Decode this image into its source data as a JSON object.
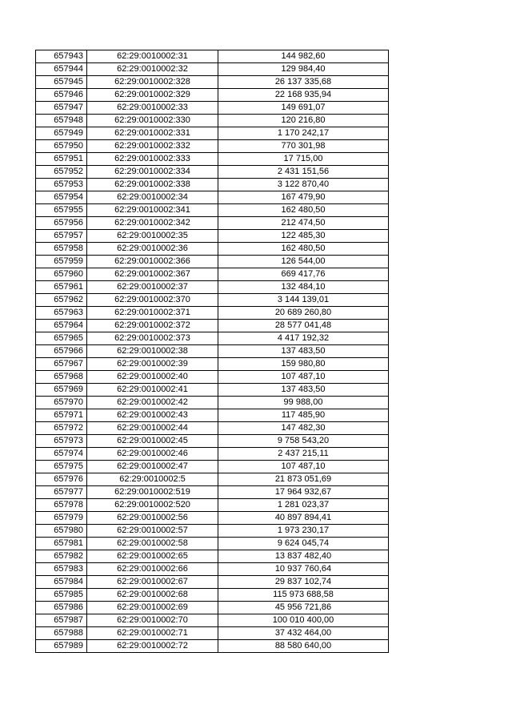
{
  "colors": {
    "background": "#ffffff",
    "border": "#000000",
    "text": "#000000"
  },
  "table": {
    "columns": [
      {
        "key": "row_id"
      },
      {
        "key": "cadastral_number"
      },
      {
        "key": "amount"
      }
    ],
    "rows": [
      [
        "657943",
        "62:29:0010002:31",
        "144 982,60"
      ],
      [
        "657944",
        "62:29:0010002:32",
        "129 984,40"
      ],
      [
        "657945",
        "62:29:0010002:328",
        "26 137 335,68"
      ],
      [
        "657946",
        "62:29:0010002:329",
        "22 168 935,94"
      ],
      [
        "657947",
        "62:29:0010002:33",
        "149 691,07"
      ],
      [
        "657948",
        "62:29:0010002:330",
        "120 216,80"
      ],
      [
        "657949",
        "62:29:0010002:331",
        "1 170 242,17"
      ],
      [
        "657950",
        "62:29:0010002:332",
        "770 301,98"
      ],
      [
        "657951",
        "62:29:0010002:333",
        "17 715,00"
      ],
      [
        "657952",
        "62:29:0010002:334",
        "2 431 151,56"
      ],
      [
        "657953",
        "62:29:0010002:338",
        "3 122 870,40"
      ],
      [
        "657954",
        "62:29:0010002:34",
        "167 479,90"
      ],
      [
        "657955",
        "62:29:0010002:341",
        "162 480,50"
      ],
      [
        "657956",
        "62:29:0010002:342",
        "212 474,50"
      ],
      [
        "657957",
        "62:29:0010002:35",
        "122 485,30"
      ],
      [
        "657958",
        "62:29:0010002:36",
        "162 480,50"
      ],
      [
        "657959",
        "62:29:0010002:366",
        "126 544,00"
      ],
      [
        "657960",
        "62:29:0010002:367",
        "669 417,76"
      ],
      [
        "657961",
        "62:29:0010002:37",
        "132 484,10"
      ],
      [
        "657962",
        "62:29:0010002:370",
        "3 144 139,01"
      ],
      [
        "657963",
        "62:29:0010002:371",
        "20 689 260,80"
      ],
      [
        "657964",
        "62:29:0010002:372",
        "28 577 041,48"
      ],
      [
        "657965",
        "62:29:0010002:373",
        "4 417 192,32"
      ],
      [
        "657966",
        "62:29:0010002:38",
        "137 483,50"
      ],
      [
        "657967",
        "62:29:0010002:39",
        "159 980,80"
      ],
      [
        "657968",
        "62:29:0010002:40",
        "107 487,10"
      ],
      [
        "657969",
        "62:29:0010002:41",
        "137 483,50"
      ],
      [
        "657970",
        "62:29:0010002:42",
        "99 988,00"
      ],
      [
        "657971",
        "62:29:0010002:43",
        "117 485,90"
      ],
      [
        "657972",
        "62:29:0010002:44",
        "147 482,30"
      ],
      [
        "657973",
        "62:29:0010002:45",
        "9 758 543,20"
      ],
      [
        "657974",
        "62:29:0010002:46",
        "2 437 215,11"
      ],
      [
        "657975",
        "62:29:0010002:47",
        "107 487,10"
      ],
      [
        "657976",
        "62:29:0010002:5",
        "21 873 051,69"
      ],
      [
        "657977",
        "62:29:0010002:519",
        "17 964 932,67"
      ],
      [
        "657978",
        "62:29:0010002:520",
        "1 281 023,37"
      ],
      [
        "657979",
        "62:29:0010002:56",
        "40 897 894,41"
      ],
      [
        "657980",
        "62:29:0010002:57",
        "1 973 230,17"
      ],
      [
        "657981",
        "62:29:0010002:58",
        "9 624 045,74"
      ],
      [
        "657982",
        "62:29:0010002:65",
        "13 837 482,40"
      ],
      [
        "657983",
        "62:29:0010002:66",
        "10 937 760,64"
      ],
      [
        "657984",
        "62:29:0010002:67",
        "29 837 102,74"
      ],
      [
        "657985",
        "62:29:0010002:68",
        "115 973 688,58"
      ],
      [
        "657986",
        "62:29:0010002:69",
        "45 956 721,86"
      ],
      [
        "657987",
        "62:29:0010002:70",
        "100 010 400,00"
      ],
      [
        "657988",
        "62:29:0010002:71",
        "37 432 464,00"
      ],
      [
        "657989",
        "62:29:0010002:72",
        "88 580 640,00"
      ]
    ]
  }
}
